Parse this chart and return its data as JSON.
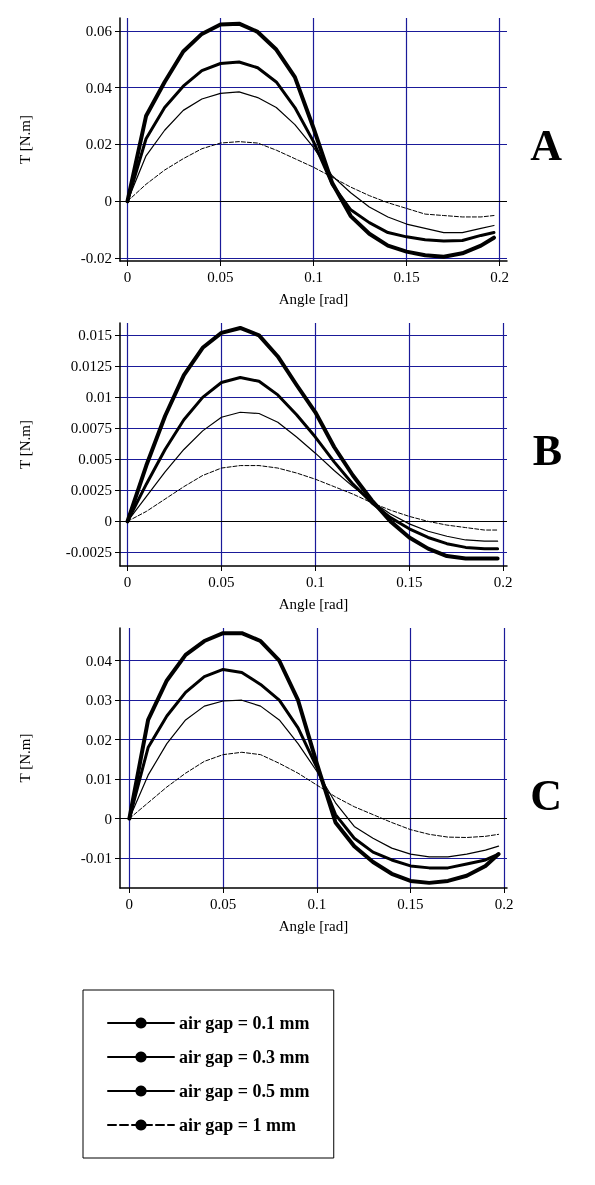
{
  "chart_data": [
    {
      "type": "line",
      "title": "A",
      "xlabel": "Angle [rad]",
      "ylabel": "T [N.m]",
      "x": [
        0,
        0.01,
        0.02,
        0.03,
        0.04,
        0.05,
        0.06,
        0.07,
        0.08,
        0.09,
        0.1,
        0.11,
        0.12,
        0.13,
        0.14,
        0.15,
        0.16,
        0.17,
        0.18,
        0.19,
        0.197
      ],
      "series": [
        {
          "color": "#000000",
          "line_style": "solid",
          "values": [
            0,
            0.03,
            0.042,
            0.0527,
            0.0589,
            0.0622,
            0.0625,
            0.0596,
            0.0534,
            0.0437,
            0.0258,
            0.0065,
            -0.0052,
            -0.0114,
            -0.0156,
            -0.0177,
            -0.019,
            -0.0195,
            -0.0183,
            -0.0156,
            -0.0128
          ]
        },
        {
          "color": "#000000",
          "line_style": "solid",
          "values": [
            0,
            0.022,
            0.033,
            0.0405,
            0.046,
            0.0485,
            0.049,
            0.047,
            0.042,
            0.033,
            0.021,
            0.006,
            -0.003,
            -0.0075,
            -0.011,
            -0.0125,
            -0.0135,
            -0.014,
            -0.0138,
            -0.012,
            -0.011
          ]
        },
        {
          "color": "#000000",
          "line_style": "solid",
          "values": [
            0,
            0.016,
            0.025,
            0.032,
            0.036,
            0.038,
            0.0385,
            0.0365,
            0.033,
            0.027,
            0.019,
            0.009,
            0.003,
            -0.002,
            -0.0055,
            -0.008,
            -0.0095,
            -0.011,
            -0.011,
            -0.0095,
            -0.0085
          ]
        },
        {
          "color": "#000000",
          "line_style": "dashed",
          "values": [
            0,
            0.006,
            0.011,
            0.015,
            0.0185,
            0.0205,
            0.021,
            0.0205,
            0.018,
            0.015,
            0.012,
            0.0085,
            0.005,
            0.002,
            -0.0005,
            -0.0025,
            -0.0045,
            -0.005,
            -0.0055,
            -0.0055,
            -0.005
          ]
        }
      ],
      "xlim": [
        -0.004,
        0.204
      ],
      "xticks": [
        0,
        0.05,
        0.1,
        0.15,
        0.2
      ],
      "ylim": [
        -0.021,
        0.0645
      ],
      "yticks": [
        -0.02,
        0,
        0.02,
        0.04,
        0.06
      ],
      "grid": true,
      "legend": false,
      "marker": "none",
      "ref_lines": [
        {
          "axis": "y",
          "value": 0,
          "color": "#000000"
        }
      ]
    },
    {
      "type": "line",
      "title": "B",
      "xlabel": "Angle [rad]",
      "ylabel": "T [N.m]",
      "x": [
        0,
        0.01,
        0.02,
        0.03,
        0.04,
        0.05,
        0.06,
        0.07,
        0.08,
        0.09,
        0.1,
        0.11,
        0.12,
        0.13,
        0.14,
        0.15,
        0.16,
        0.17,
        0.18,
        0.19,
        0.197
      ],
      "series": [
        {
          "color": "#000000",
          "line_style": "solid",
          "values": [
            0,
            0.0045,
            0.0085,
            0.0118,
            0.014,
            0.0152,
            0.0156,
            0.015,
            0.0133,
            0.011,
            0.0088,
            0.006,
            0.0037,
            0.0017,
            0,
            -0.0013,
            -0.0022,
            -0.0028,
            -0.003,
            -0.003,
            -0.003
          ]
        },
        {
          "color": "#000000",
          "line_style": "solid",
          "values": [
            0,
            0.003,
            0.0058,
            0.0082,
            0.01,
            0.0112,
            0.0116,
            0.0113,
            0.0102,
            0.0086,
            0.0068,
            0.0048,
            0.003,
            0.0015,
            0.0003,
            -0.0006,
            -0.0013,
            -0.0018,
            -0.0021,
            -0.0022,
            -0.0022
          ]
        },
        {
          "color": "#000000",
          "line_style": "solid",
          "values": [
            0,
            0.002,
            0.004,
            0.0058,
            0.0073,
            0.0084,
            0.0088,
            0.0087,
            0.008,
            0.0068,
            0.0055,
            0.0041,
            0.0028,
            0.0016,
            0.0006,
            -0.0002,
            -0.0008,
            -0.0012,
            -0.0015,
            -0.0016,
            -0.0016
          ]
        },
        {
          "color": "#000000",
          "line_style": "dashed",
          "values": [
            0,
            0.0008,
            0.0018,
            0.0028,
            0.0037,
            0.0043,
            0.0045,
            0.0045,
            0.0043,
            0.0039,
            0.0034,
            0.0028,
            0.0022,
            0.0015,
            0.0009,
            0.0004,
            0,
            -0.0003,
            -0.0005,
            -0.0007,
            -0.0007
          ]
        }
      ],
      "xlim": [
        -0.004,
        0.202
      ],
      "xticks": [
        0,
        0.05,
        0.1,
        0.15,
        0.2
      ],
      "ylim": [
        -0.0036,
        0.016
      ],
      "yticks": [
        -0.0025,
        0,
        0.0025,
        0.005,
        0.0075,
        0.01,
        0.0125,
        0.015
      ],
      "grid": true,
      "legend": false,
      "marker": "none",
      "ref_lines": [
        {
          "axis": "y",
          "value": 0,
          "color": "#000000"
        }
      ]
    },
    {
      "type": "line",
      "title": "C",
      "xlabel": "Angle [rad]",
      "ylabel": "T [N.m]",
      "x": [
        0,
        0.01,
        0.02,
        0.03,
        0.04,
        0.05,
        0.06,
        0.07,
        0.08,
        0.09,
        0.1,
        0.11,
        0.12,
        0.13,
        0.14,
        0.15,
        0.16,
        0.17,
        0.18,
        0.19,
        0.197
      ],
      "series": [
        {
          "name": "air gap = 0.1 mm",
          "color": "#000000",
          "line_style": "solid",
          "values": [
            0,
            0.025,
            0.035,
            0.0415,
            0.045,
            0.047,
            0.047,
            0.045,
            0.04,
            0.03,
            0.014,
            -0.001,
            -0.007,
            -0.011,
            -0.014,
            -0.0158,
            -0.0163,
            -0.0158,
            -0.0145,
            -0.012,
            -0.009
          ]
        },
        {
          "name": "air gap = 0.3 mm",
          "color": "#000000",
          "line_style": "solid",
          "values": [
            0,
            0.018,
            0.026,
            0.032,
            0.036,
            0.0378,
            0.037,
            0.034,
            0.03,
            0.023,
            0.013,
            0.001,
            -0.005,
            -0.0085,
            -0.0105,
            -0.012,
            -0.0125,
            -0.0125,
            -0.0115,
            -0.0105,
            -0.009
          ]
        },
        {
          "name": "air gap = 0.5 mm",
          "color": "#000000",
          "line_style": "solid",
          "values": [
            0,
            0.011,
            0.019,
            0.025,
            0.0285,
            0.0298,
            0.03,
            0.0285,
            0.025,
            0.019,
            0.012,
            0.004,
            -0.002,
            -0.005,
            -0.0075,
            -0.009,
            -0.0097,
            -0.0097,
            -0.009,
            -0.008,
            -0.007
          ]
        },
        {
          "name": "air gap = 1 mm",
          "color": "#000000",
          "line_style": "dashed",
          "values": [
            0,
            0.004,
            0.008,
            0.0115,
            0.0145,
            0.0162,
            0.0168,
            0.0162,
            0.014,
            0.0115,
            0.0085,
            0.0055,
            0.003,
            0.001,
            -0.001,
            -0.0028,
            -0.004,
            -0.0047,
            -0.0048,
            -0.0045,
            -0.004
          ]
        }
      ],
      "xlim": [
        -0.005,
        0.2015
      ],
      "xticks": [
        0,
        0.05,
        0.1,
        0.15,
        0.2
      ],
      "ylim": [
        -0.0176,
        0.0483
      ],
      "yticks": [
        -0.01,
        0,
        0.01,
        0.02,
        0.03,
        0.04
      ],
      "grid": true,
      "legend": "bottom",
      "marker": "none",
      "ref_lines": [
        {
          "axis": "y",
          "value": 0,
          "color": "#000000"
        }
      ]
    }
  ]
}
